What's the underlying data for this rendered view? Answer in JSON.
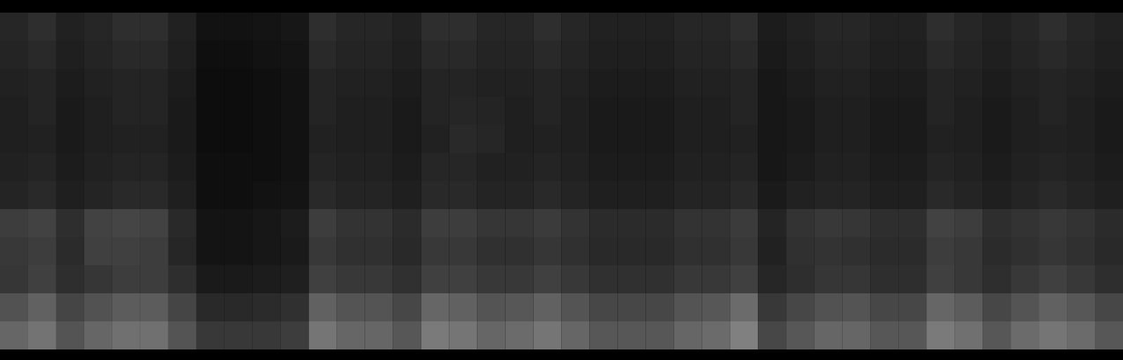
{
  "chart_data": {
    "type": "heatmap",
    "tick_labels": false,
    "zlim": [
      0,
      100
    ],
    "cells": [
      [
        15,
        18,
        13,
        15,
        18,
        18,
        13,
        7,
        7,
        8,
        9,
        18,
        15,
        15,
        13,
        18,
        18,
        15,
        15,
        18,
        15,
        13,
        13,
        13,
        15,
        15,
        18,
        11,
        13,
        15,
        15,
        13,
        13,
        18,
        15,
        13,
        15,
        18,
        15,
        13
      ],
      [
        14,
        16,
        12,
        14,
        16,
        16,
        12,
        6,
        6,
        7,
        8,
        16,
        14,
        14,
        12,
        16,
        16,
        14,
        14,
        16,
        14,
        12,
        12,
        12,
        14,
        14,
        16,
        10,
        12,
        14,
        14,
        12,
        12,
        16,
        14,
        12,
        14,
        16,
        14,
        12
      ],
      [
        13,
        14,
        11,
        13,
        14,
        14,
        11,
        5,
        5,
        6,
        7,
        14,
        13,
        13,
        11,
        14,
        14,
        13,
        13,
        14,
        13,
        11,
        11,
        11,
        13,
        13,
        14,
        9,
        11,
        13,
        13,
        11,
        11,
        14,
        13,
        11,
        13,
        14,
        13,
        11
      ],
      [
        12,
        14,
        10,
        12,
        14,
        14,
        10,
        5,
        5,
        6,
        7,
        14,
        12,
        12,
        10,
        14,
        15,
        14,
        12,
        14,
        12,
        10,
        10,
        10,
        12,
        12,
        14,
        9,
        10,
        12,
        12,
        10,
        10,
        14,
        12,
        10,
        12,
        14,
        12,
        10
      ],
      [
        12,
        13,
        10,
        12,
        13,
        13,
        10,
        5,
        5,
        6,
        7,
        13,
        12,
        12,
        10,
        13,
        16,
        15,
        12,
        13,
        12,
        10,
        10,
        10,
        12,
        12,
        13,
        9,
        10,
        12,
        12,
        10,
        10,
        13,
        12,
        10,
        12,
        13,
        12,
        10
      ],
      [
        13,
        14,
        11,
        13,
        14,
        14,
        11,
        6,
        6,
        6,
        7,
        14,
        13,
        13,
        11,
        15,
        15,
        13,
        13,
        14,
        13,
        11,
        11,
        11,
        13,
        13,
        14,
        9,
        11,
        13,
        13,
        11,
        11,
        14,
        13,
        11,
        13,
        14,
        13,
        11
      ],
      [
        14,
        16,
        12,
        14,
        16,
        16,
        12,
        6,
        6,
        7,
        8,
        16,
        14,
        14,
        12,
        16,
        16,
        14,
        14,
        16,
        14,
        12,
        12,
        12,
        14,
        14,
        16,
        10,
        13,
        14,
        14,
        12,
        12,
        16,
        14,
        12,
        14,
        16,
        14,
        12
      ],
      [
        24,
        26,
        18,
        26,
        27,
        26,
        16,
        8,
        8,
        9,
        11,
        24,
        20,
        20,
        17,
        24,
        24,
        21,
        21,
        23,
        20,
        17,
        17,
        17,
        20,
        20,
        23,
        14,
        20,
        22,
        21,
        18,
        18,
        26,
        24,
        18,
        20,
        22,
        20,
        17
      ],
      [
        22,
        24,
        17,
        25,
        25,
        24,
        15,
        8,
        8,
        9,
        10,
        22,
        19,
        19,
        16,
        22,
        22,
        19,
        19,
        21,
        19,
        16,
        16,
        16,
        19,
        19,
        22,
        13,
        19,
        20,
        19,
        17,
        17,
        24,
        22,
        17,
        19,
        21,
        19,
        16
      ],
      [
        21,
        25,
        18,
        21,
        24,
        24,
        18,
        10,
        10,
        11,
        12,
        25,
        22,
        22,
        19,
        25,
        25,
        22,
        22,
        25,
        22,
        19,
        19,
        19,
        22,
        22,
        25,
        15,
        18,
        21,
        21,
        18,
        18,
        25,
        22,
        18,
        22,
        25,
        22,
        18
      ],
      [
        32,
        38,
        27,
        32,
        36,
        36,
        27,
        16,
        16,
        17,
        19,
        38,
        33,
        33,
        28,
        40,
        38,
        33,
        34,
        38,
        33,
        28,
        28,
        28,
        33,
        34,
        42,
        22,
        28,
        32,
        33,
        28,
        28,
        40,
        36,
        28,
        33,
        38,
        34,
        28
      ],
      [
        40,
        45,
        33,
        40,
        44,
        44,
        33,
        22,
        22,
        22,
        24,
        46,
        40,
        40,
        34,
        48,
        46,
        40,
        42,
        46,
        40,
        34,
        34,
        34,
        40,
        42,
        50,
        28,
        34,
        40,
        40,
        34,
        34,
        48,
        44,
        34,
        42,
        46,
        42,
        34
      ]
    ]
  }
}
